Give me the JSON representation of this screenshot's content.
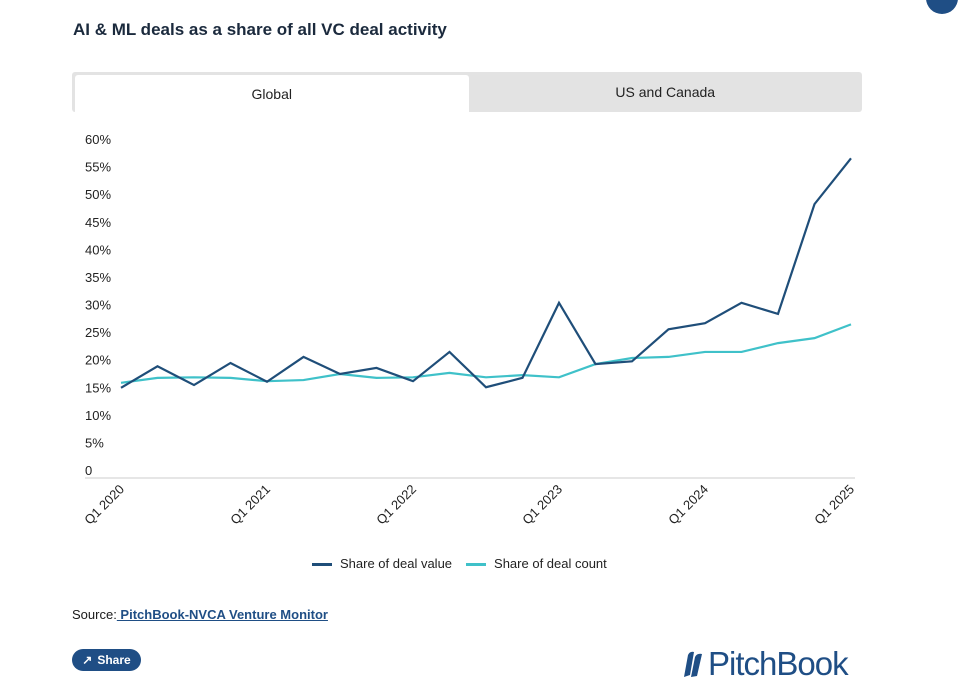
{
  "title": "AI & ML deals as a share of all VC deal activity",
  "tabs": [
    {
      "label": "Global",
      "active": true
    },
    {
      "label": "US and Canada",
      "active": false
    }
  ],
  "chart_data": {
    "type": "line",
    "x": [
      "Q1 2020",
      "Q2 2020",
      "Q3 2020",
      "Q4 2020",
      "Q1 2021",
      "Q2 2021",
      "Q3 2021",
      "Q4 2021",
      "Q1 2022",
      "Q2 2022",
      "Q3 2022",
      "Q4 2022",
      "Q1 2023",
      "Q2 2023",
      "Q3 2023",
      "Q4 2023",
      "Q1 2024",
      "Q2 2024",
      "Q3 2024",
      "Q4 2024",
      "Q1 2025"
    ],
    "x_tick_labels": [
      "Q1 2020",
      "Q1 2021",
      "Q1 2022",
      "Q1 2023",
      "Q1 2024",
      "Q1 2025"
    ],
    "y_tick_labels": [
      "0",
      "5%",
      "10%",
      "15%",
      "20%",
      "25%",
      "30%",
      "35%",
      "40%",
      "45%",
      "50%",
      "55%",
      "60%"
    ],
    "ylim": [
      0,
      60
    ],
    "series": [
      {
        "name": "Share of deal value",
        "color": "#1f4e79",
        "values": [
          14.9,
          18.8,
          15.4,
          19.4,
          16.0,
          20.5,
          17.4,
          18.5,
          16.1,
          21.4,
          15.0,
          16.7,
          30.3,
          19.2,
          19.7,
          25.5,
          26.6,
          30.3,
          28.3,
          48.2,
          56.5
        ]
      },
      {
        "name": "Share of deal count",
        "color": "#3fc1c9",
        "values": [
          15.8,
          16.7,
          16.8,
          16.7,
          16.1,
          16.3,
          17.4,
          16.7,
          16.8,
          17.6,
          16.8,
          17.2,
          16.8,
          19.2,
          20.3,
          20.5,
          21.4,
          21.4,
          23.0,
          23.9,
          26.4
        ]
      }
    ],
    "legend_position": "bottom"
  },
  "source": {
    "label": "Source:",
    "link": " PitchBook-NVCA Venture Monitor"
  },
  "share_label": "Share",
  "logo_text": "PitchBook"
}
